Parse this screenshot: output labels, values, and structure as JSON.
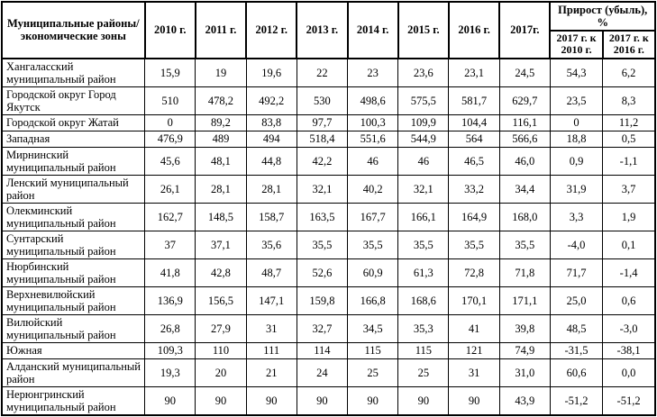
{
  "table": {
    "header": {
      "region_col": "Муниципальные районы/экономические зоны",
      "years": [
        "2010 г.",
        "2011 г.",
        "2012 г.",
        "2013 г.",
        "2014 г.",
        "2015 г.",
        "2016 г.",
        "2017г."
      ],
      "growth_title": "Прирост (убыль), %",
      "growth_cols": [
        "2017 г. к 2010 г.",
        "2017 г. к 2016 г."
      ]
    },
    "rows": [
      {
        "name": "Хангаласский муниципальный район",
        "values": [
          "15,9",
          "19",
          "19,6",
          "22",
          "23",
          "23,6",
          "23,1",
          "24,5",
          "54,3",
          "6,2"
        ]
      },
      {
        "name": "Городской округ Город Якутск",
        "values": [
          "510",
          "478,2",
          "492,2",
          "530",
          "498,6",
          "575,5",
          "581,7",
          "629,7",
          "23,5",
          "8,3"
        ]
      },
      {
        "name": "Городской округ Жатай",
        "values": [
          "0",
          "89,2",
          "83,8",
          "97,7",
          "100,3",
          "109,9",
          "104,4",
          "116,1",
          "0",
          "11,2"
        ]
      },
      {
        "name": "Западная",
        "values": [
          "476,9",
          "489",
          "494",
          "518,4",
          "551,6",
          "544,9",
          "564",
          "566,6",
          "18,8",
          "0,5"
        ]
      },
      {
        "name": "Мирнинский муниципальный район",
        "values": [
          "45,6",
          "48,1",
          "44,8",
          "42,2",
          "46",
          "46",
          "46,5",
          "46,0",
          "0,9",
          "-1,1"
        ]
      },
      {
        "name": "Ленский муниципальный район",
        "values": [
          "26,1",
          "28,1",
          "28,1",
          "32,1",
          "40,2",
          "32,1",
          "33,2",
          "34,4",
          "31,9",
          "3,7"
        ]
      },
      {
        "name": "Олекминский муниципальный район",
        "values": [
          "162,7",
          "148,5",
          "158,7",
          "163,5",
          "167,7",
          "166,1",
          "164,9",
          "168,0",
          "3,3",
          "1,9"
        ]
      },
      {
        "name": "Сунтарский муниципальный район",
        "values": [
          "37",
          "37,1",
          "35,6",
          "35,5",
          "35,5",
          "35,5",
          "35,5",
          "35,5",
          "-4,0",
          "0,1"
        ]
      },
      {
        "name": "Нюрбинский муниципальный район",
        "values": [
          "41,8",
          "42,8",
          "48,7",
          "52,6",
          "60,9",
          "61,3",
          "72,8",
          "71,8",
          "71,7",
          "-1,4"
        ]
      },
      {
        "name": "Верхневилюйский муниципальный район",
        "values": [
          "136,9",
          "156,5",
          "147,1",
          "159,8",
          "166,8",
          "168,6",
          "170,1",
          "171,1",
          "25,0",
          "0,6"
        ]
      },
      {
        "name": "Вилюйский муниципальный район",
        "values": [
          "26,8",
          "27,9",
          "31",
          "32,7",
          "34,5",
          "35,3",
          "41",
          "39,8",
          "48,5",
          "-3,0"
        ]
      },
      {
        "name": "Южная",
        "values": [
          "109,3",
          "110",
          "111",
          "114",
          "115",
          "115",
          "121",
          "74,9",
          "-31,5",
          "-38,1"
        ]
      },
      {
        "name": "Алданский муниципальный район",
        "values": [
          "19,3",
          "20",
          "21",
          "24",
          "25",
          "25",
          "31",
          "31,0",
          "60,6",
          "0,0"
        ]
      },
      {
        "name": "Нерюнгринский муниципальный район",
        "values": [
          "90",
          "90",
          "90",
          "90",
          "90",
          "90",
          "90",
          "43,9",
          "-51,2",
          "-51,2"
        ]
      }
    ]
  }
}
